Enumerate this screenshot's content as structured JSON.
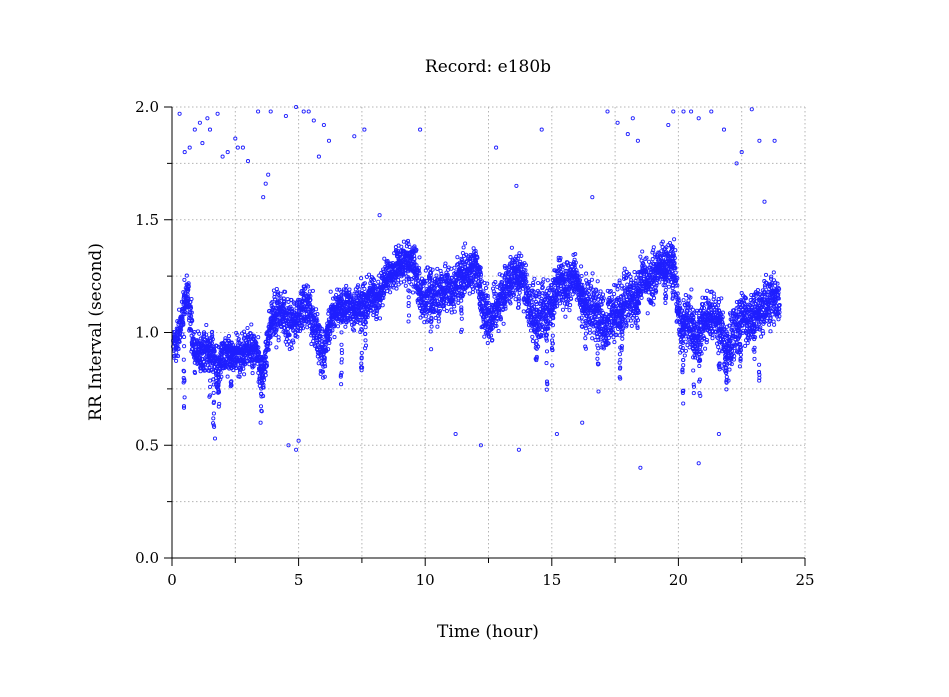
{
  "chart_data": {
    "type": "scatter",
    "title": "Record:  e180b",
    "xlabel": "Time (hour)",
    "ylabel": "RR Interval (second)",
    "xlim": [
      0,
      25
    ],
    "ylim": [
      0,
      2
    ],
    "xticks": [
      0,
      5,
      10,
      15,
      20,
      25
    ],
    "xtick_labels": [
      "0",
      "5",
      "10",
      "15",
      "20",
      "25"
    ],
    "yticks": [
      0,
      0.5,
      1,
      1.5,
      2
    ],
    "ytick_labels": [
      "0.0",
      "0.5",
      "1.0",
      "1.5",
      "2.0"
    ],
    "grid": true,
    "marker_color": "#1f1fff",
    "series": [
      {
        "name": "",
        "x": [
          0.05,
          0.3,
          0.6,
          0.9,
          1.2,
          1.5,
          1.8,
          2.1,
          2.4,
          2.7,
          3.0,
          3.3,
          3.6,
          3.9,
          4.2,
          4.5,
          4.8,
          5.1,
          5.4,
          5.7,
          6.0,
          6.3,
          6.6,
          6.9,
          7.2,
          7.5,
          7.8,
          8.1,
          8.4,
          8.7,
          9.0,
          9.3,
          9.6,
          9.9,
          10.2,
          10.5,
          10.8,
          11.1,
          11.4,
          11.7,
          12.0,
          12.3,
          12.6,
          12.9,
          13.2,
          13.5,
          13.8,
          14.1,
          14.4,
          14.7,
          15.0,
          15.3,
          15.6,
          15.9,
          16.2,
          16.5,
          16.8,
          17.1,
          17.4,
          17.7,
          18.0,
          18.3,
          18.6,
          18.9,
          19.2,
          19.5,
          19.8,
          20.1,
          20.4,
          20.7,
          21.0,
          21.3,
          21.6,
          21.9,
          22.2,
          22.5,
          22.8,
          23.1,
          23.4,
          23.7,
          24.0
        ],
        "y": [
          0.93,
          1.0,
          1.18,
          0.92,
          0.9,
          0.94,
          0.83,
          0.92,
          0.9,
          0.9,
          0.93,
          0.92,
          0.8,
          1.05,
          1.1,
          1.06,
          1.04,
          1.1,
          1.12,
          1.0,
          0.9,
          1.08,
          1.1,
          1.12,
          1.1,
          1.12,
          1.16,
          1.15,
          1.22,
          1.27,
          1.3,
          1.32,
          1.3,
          1.14,
          1.18,
          1.16,
          1.22,
          1.18,
          1.24,
          1.25,
          1.3,
          1.1,
          1.06,
          1.14,
          1.2,
          1.26,
          1.25,
          1.14,
          1.05,
          1.1,
          1.14,
          1.23,
          1.2,
          1.26,
          1.16,
          1.08,
          1.1,
          1.02,
          1.08,
          1.1,
          1.15,
          1.14,
          1.25,
          1.2,
          1.3,
          1.3,
          1.32,
          1.0,
          1.06,
          0.97,
          1.05,
          1.08,
          1.06,
          0.92,
          1.0,
          1.08,
          1.05,
          1.1,
          1.12,
          1.14,
          1.15
        ],
        "spread": [
          0.08,
          0.1,
          0.08,
          0.1,
          0.09,
          0.08,
          0.09,
          0.08,
          0.07,
          0.09,
          0.08,
          0.08,
          0.08,
          0.1,
          0.1,
          0.1,
          0.09,
          0.1,
          0.09,
          0.11,
          0.1,
          0.08,
          0.08,
          0.08,
          0.08,
          0.09,
          0.08,
          0.08,
          0.08,
          0.08,
          0.08,
          0.08,
          0.09,
          0.12,
          0.1,
          0.1,
          0.1,
          0.1,
          0.1,
          0.1,
          0.1,
          0.12,
          0.12,
          0.1,
          0.1,
          0.1,
          0.1,
          0.12,
          0.13,
          0.12,
          0.1,
          0.1,
          0.1,
          0.08,
          0.1,
          0.12,
          0.12,
          0.12,
          0.1,
          0.12,
          0.12,
          0.1,
          0.1,
          0.12,
          0.1,
          0.1,
          0.1,
          0.12,
          0.12,
          0.12,
          0.1,
          0.1,
          0.12,
          0.12,
          0.12,
          0.1,
          0.1,
          0.1,
          0.1,
          0.1,
          0.1
        ]
      },
      {
        "name": "",
        "x": [
          0.3,
          0.5,
          0.7,
          0.9,
          1.1,
          1.2,
          1.4,
          1.5,
          1.8,
          2.0,
          2.2,
          2.5,
          2.6,
          2.8,
          3.0,
          3.4,
          3.6,
          3.7,
          3.8,
          3.9,
          4.5,
          4.9,
          5.2,
          5.4,
          5.6,
          5.8,
          6.0,
          6.2,
          7.2,
          7.6,
          8.2,
          9.8,
          12.8,
          13.6,
          14.6,
          16.6,
          17.2,
          17.6,
          18.0,
          18.2,
          18.4,
          19.6,
          19.8,
          20.2,
          20.5,
          20.8,
          21.3,
          21.8,
          22.3,
          22.5,
          22.9,
          23.2,
          23.4,
          23.8,
          12.2,
          18.5,
          20.8,
          4.6,
          4.9,
          5.0,
          1.7,
          13.7,
          11.2,
          15.2,
          16.2,
          3.5,
          21.6
        ],
        "y": [
          1.97,
          1.8,
          1.82,
          1.9,
          1.93,
          1.84,
          1.95,
          1.9,
          1.97,
          1.78,
          1.8,
          1.86,
          1.82,
          1.82,
          1.76,
          1.98,
          1.6,
          1.66,
          1.7,
          1.98,
          1.96,
          2.0,
          1.98,
          1.98,
          1.94,
          1.78,
          1.92,
          1.85,
          1.87,
          1.9,
          1.52,
          1.9,
          1.82,
          1.65,
          1.9,
          1.6,
          1.98,
          1.93,
          1.88,
          1.95,
          1.85,
          1.92,
          1.98,
          1.98,
          1.98,
          1.95,
          1.98,
          1.9,
          1.75,
          1.8,
          1.99,
          1.85,
          1.58,
          1.85,
          0.5,
          0.4,
          0.42,
          0.5,
          0.48,
          0.52,
          0.53,
          0.48,
          0.55,
          0.55,
          0.6,
          0.6,
          0.55
        ],
        "spread": []
      }
    ]
  }
}
